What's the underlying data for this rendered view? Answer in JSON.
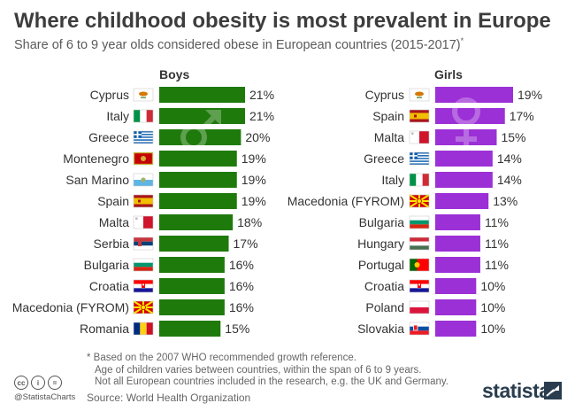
{
  "header": {
    "title": "Where childhood obesity is most prevalent in Europe",
    "subtitle": "Share of 6 to 9 year olds considered obese in European countries (2015-2017)",
    "subtitle_mark": "*"
  },
  "colors": {
    "boys": "#1f7a0c",
    "girls": "#9b30d6"
  },
  "chart_data": [
    {
      "type": "bar",
      "title": "Boys",
      "unit": "%",
      "symbol": "male-symbol",
      "categories": [
        "Cyprus",
        "Italy",
        "Greece",
        "Montenegro",
        "San Marino",
        "Spain",
        "Malta",
        "Serbia",
        "Bulgaria",
        "Croatia",
        "Macedonia (FYROM)",
        "Romania"
      ],
      "values": [
        21,
        21,
        20,
        19,
        19,
        19,
        18,
        17,
        16,
        16,
        16,
        15
      ],
      "value_labels": [
        "21%",
        "21%",
        "20%",
        "19%",
        "19%",
        "19%",
        "18%",
        "17%",
        "16%",
        "16%",
        "16%",
        "15%"
      ],
      "flags": [
        "cyprus",
        "italy",
        "greece",
        "montenegro",
        "san-marino",
        "spain",
        "malta",
        "serbia",
        "bulgaria",
        "croatia",
        "macedonia",
        "romania"
      ]
    },
    {
      "type": "bar",
      "title": "Girls",
      "unit": "%",
      "symbol": "female-symbol",
      "categories": [
        "Cyprus",
        "Spain",
        "Malta",
        "Greece",
        "Italy",
        "Macedonia (FYROM)",
        "Bulgaria",
        "Hungary",
        "Portugal",
        "Croatia",
        "Poland",
        "Slovakia"
      ],
      "values": [
        19,
        17,
        15,
        14,
        14,
        13,
        11,
        11,
        11,
        10,
        10,
        10
      ],
      "value_labels": [
        "19%",
        "17%",
        "15%",
        "14%",
        "14%",
        "13%",
        "11%",
        "11%",
        "11%",
        "10%",
        "10%",
        "10%"
      ],
      "flags": [
        "cyprus",
        "spain",
        "malta",
        "greece",
        "italy",
        "macedonia",
        "bulgaria",
        "hungary",
        "portugal",
        "croatia",
        "poland",
        "slovakia"
      ]
    }
  ],
  "notes": [
    "* Based on the 2007 WHO recommended growth reference.",
    "Age of children varies between countries, within the span of 6 to 9 years.",
    "Not all European countries included in the research, e.g. the UK and Germany."
  ],
  "source": "Source: World Health Organization",
  "footer": {
    "license_icons": [
      "cc-icon",
      "by-icon",
      "equals-icon"
    ],
    "license_glyphs": [
      "cc",
      "i",
      "="
    ],
    "handle": "@StatistaCharts",
    "logo": "statista"
  }
}
